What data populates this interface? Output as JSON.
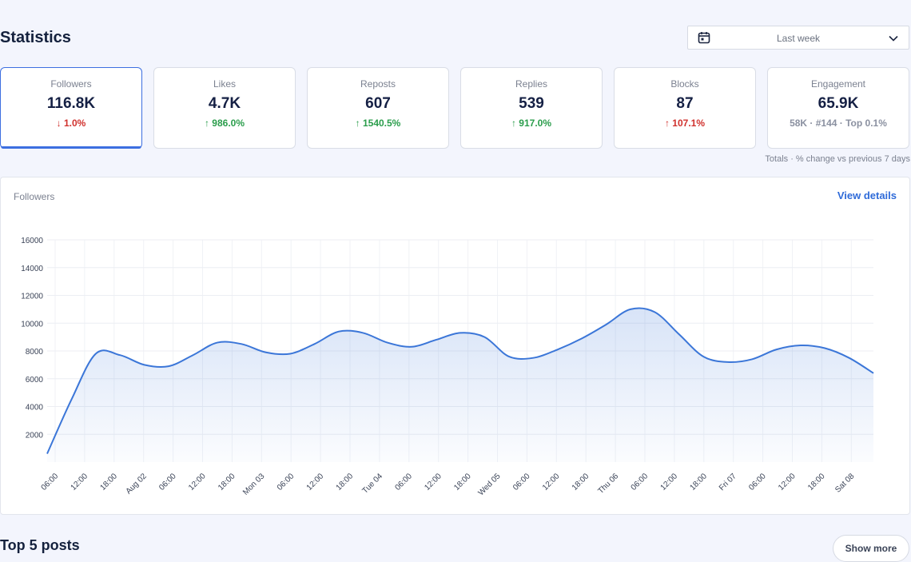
{
  "header": {
    "title": "Statistics"
  },
  "date_filter": {
    "value": "Last week",
    "icon": "calendar-icon"
  },
  "cards": [
    {
      "label": "Followers",
      "value": "116.8K",
      "change": "↓ 1.0%",
      "tone": "down",
      "active": true
    },
    {
      "label": "Likes",
      "value": "4.7K",
      "change": "↑ 986.0%",
      "tone": "up"
    },
    {
      "label": "Reposts",
      "value": "607",
      "change": "↑ 1540.5%",
      "tone": "up"
    },
    {
      "label": "Replies",
      "value": "539",
      "change": "↑ 917.0%",
      "tone": "up"
    },
    {
      "label": "Blocks",
      "value": "87",
      "change": "↑ 107.1%",
      "tone": "bad-up"
    },
    {
      "label": "Engagement",
      "value": "65.9K",
      "change": "58K · #144 · Top 0.1%",
      "tone": "muted"
    }
  ],
  "cards_note": "Totals · % change vs previous 7 days",
  "chart_panel": {
    "title": "Followers",
    "link": "View details"
  },
  "chart_data": {
    "type": "area",
    "title": "Followers",
    "ylim": [
      0,
      16000
    ],
    "yticks": [
      2000,
      4000,
      6000,
      8000,
      10000,
      12000,
      14000,
      16000
    ],
    "x_ticks": [
      "06:00",
      "12:00",
      "18:00",
      "Aug 02",
      "06:00",
      "12:00",
      "18:00",
      "Mon 03",
      "06:00",
      "12:00",
      "18:00",
      "Tue 04",
      "06:00",
      "12:00",
      "18:00",
      "Wed 05",
      "06:00",
      "12:00",
      "18:00",
      "Thu 06",
      "06:00",
      "12:00",
      "18:00",
      "Fri 07",
      "06:00",
      "12:00",
      "18:00",
      "Sat 08"
    ],
    "grid": true,
    "series": [
      {
        "color": "#3b76d8",
        "values": [
          600,
          4500,
          7800,
          7700,
          7000,
          6900,
          7700,
          8600,
          8500,
          7900,
          7800,
          8500,
          9400,
          9300,
          8600,
          8300,
          8800,
          9300,
          9000,
          7600,
          7500,
          8100,
          8900,
          9900,
          11000,
          10800,
          9200,
          7600,
          7200,
          7400,
          8100,
          8400,
          8200,
          7500,
          6400
        ]
      }
    ]
  },
  "top_posts": {
    "title": "Top 5 posts",
    "button": "Show more"
  }
}
